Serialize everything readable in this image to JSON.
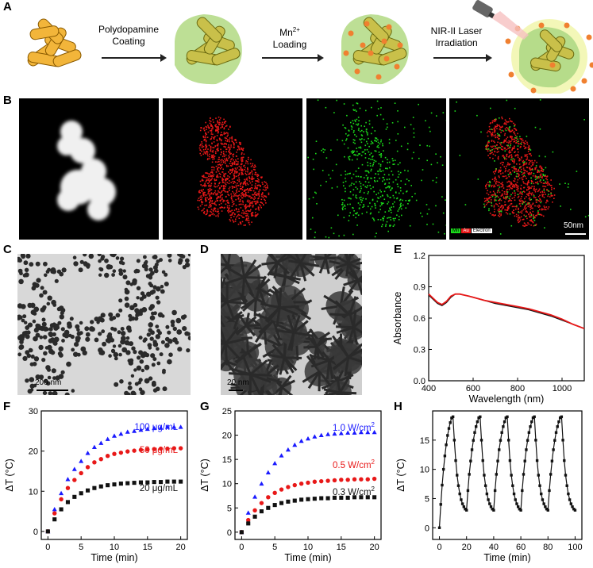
{
  "panels": {
    "A": "A",
    "B": "B",
    "C": "C",
    "D": "D",
    "E": "E",
    "F": "F",
    "G": "G",
    "H": "H"
  },
  "schematic": {
    "step1": "Polydopamine\nCoating",
    "step2_main": "Mn",
    "step2_sup": "2+",
    "step2_sub": "Loading",
    "step3": "NIR-II Laser\nIrradiation"
  },
  "eds": {
    "legend_mn": "Mn",
    "legend_au": "Au",
    "legend_electron": "Electron",
    "scale": "50nm"
  },
  "tem": {
    "c_scale": "200 nm",
    "d_scale": "20 nm"
  },
  "colors": {
    "blue": "#1a1aff",
    "red": "#e81818",
    "black": "#111111",
    "gold": "#f0b030",
    "shell": "#a8d88a",
    "mn_dot": "#f08030"
  },
  "chart_data": [
    {
      "panel": "E",
      "type": "line",
      "xlabel": "Wavelength (nm)",
      "ylabel": "Absorbance",
      "xlim": [
        400,
        1100
      ],
      "ylim": [
        0.0,
        1.2
      ],
      "xticks": [
        "400",
        "600",
        "800",
        "1000"
      ],
      "yticks": [
        "0.0",
        "0.3",
        "0.6",
        "0.9",
        "1.2"
      ],
      "series": [
        {
          "color": "black",
          "x": [
            400,
            420,
            440,
            460,
            480,
            500,
            520,
            540,
            560,
            580,
            600,
            650,
            700,
            750,
            800,
            850,
            900,
            950,
            1000,
            1050,
            1100
          ],
          "y": [
            0.82,
            0.78,
            0.74,
            0.72,
            0.75,
            0.8,
            0.83,
            0.83,
            0.82,
            0.81,
            0.8,
            0.77,
            0.74,
            0.72,
            0.7,
            0.68,
            0.65,
            0.62,
            0.58,
            0.54,
            0.5
          ]
        },
        {
          "color": "red",
          "x": [
            400,
            420,
            440,
            460,
            480,
            500,
            520,
            540,
            560,
            580,
            600,
            650,
            700,
            750,
            800,
            850,
            900,
            950,
            1000,
            1050,
            1100
          ],
          "y": [
            0.83,
            0.79,
            0.75,
            0.73,
            0.76,
            0.81,
            0.83,
            0.83,
            0.82,
            0.81,
            0.8,
            0.77,
            0.75,
            0.73,
            0.71,
            0.69,
            0.66,
            0.63,
            0.59,
            0.54,
            0.5
          ]
        }
      ]
    },
    {
      "panel": "F",
      "type": "scatter",
      "xlabel": "Time (min)",
      "ylabel": "ΔT (°C)",
      "xlim": [
        -1,
        21
      ],
      "ylim": [
        -2,
        30
      ],
      "xticks": [
        "0",
        "5",
        "10",
        "15",
        "20"
      ],
      "yticks": [
        "0",
        "10",
        "20",
        "30"
      ],
      "x": [
        0,
        1,
        2,
        3,
        4,
        5,
        6,
        7,
        8,
        9,
        10,
        11,
        12,
        13,
        14,
        15,
        16,
        17,
        18,
        19,
        20
      ],
      "series": [
        {
          "name": "100 μg/mL",
          "color": "blue",
          "marker": "triangle",
          "values": [
            0,
            5.5,
            9.5,
            13,
            15.5,
            17.5,
            19.5,
            21,
            22,
            23,
            23.8,
            24.3,
            24.8,
            25,
            25.3,
            25.5,
            25.7,
            25.8,
            26,
            26,
            26
          ]
        },
        {
          "name": "50 μg/mL",
          "color": "red",
          "marker": "circle",
          "values": [
            0,
            4.5,
            8,
            10.8,
            12.8,
            14.5,
            16,
            17.2,
            18,
            18.8,
            19.3,
            19.6,
            19.9,
            20.1,
            20.3,
            20.4,
            20.5,
            20.6,
            20.6,
            20.7,
            20.7
          ]
        },
        {
          "name": "20 μg/mL",
          "color": "black",
          "marker": "square",
          "values": [
            0,
            3,
            5.5,
            7.3,
            8.6,
            9.5,
            10.2,
            10.8,
            11.2,
            11.5,
            11.7,
            11.9,
            12,
            12.1,
            12.2,
            12.2,
            12.3,
            12.3,
            12.4,
            12.4,
            12.4
          ]
        }
      ]
    },
    {
      "panel": "G",
      "type": "scatter",
      "xlabel": "Time (min)",
      "ylabel": "ΔT (°C)",
      "xlim": [
        -1,
        21
      ],
      "ylim": [
        -1.5,
        25
      ],
      "xticks": [
        "0",
        "5",
        "10",
        "15",
        "20"
      ],
      "yticks": [
        "0",
        "5",
        "10",
        "15",
        "20",
        "25"
      ],
      "x": [
        0,
        1,
        2,
        3,
        4,
        5,
        6,
        7,
        8,
        9,
        10,
        11,
        12,
        13,
        14,
        15,
        16,
        17,
        18,
        19,
        20
      ],
      "series": [
        {
          "name_main": "1.0 W/cm",
          "name_sup": "2",
          "color": "blue",
          "marker": "triangle",
          "values": [
            0,
            4,
            7.3,
            10,
            12.3,
            14.2,
            15.8,
            17,
            18,
            18.8,
            19.3,
            19.7,
            20,
            20.2,
            20.3,
            20.4,
            20.5,
            20.5,
            20.6,
            20.6,
            20.6
          ]
        },
        {
          "name_main": "0.5 W/cm",
          "name_sup": "2",
          "color": "red",
          "marker": "circle",
          "values": [
            0,
            2.5,
            4.5,
            6,
            7.2,
            8.1,
            8.8,
            9.3,
            9.7,
            10,
            10.2,
            10.4,
            10.5,
            10.6,
            10.7,
            10.8,
            10.8,
            10.9,
            10.9,
            10.9,
            11
          ]
        },
        {
          "name_main": "0.3 W/cm",
          "name_sup": "2",
          "color": "black",
          "marker": "square",
          "values": [
            0,
            1.8,
            3.2,
            4.3,
            5,
            5.6,
            6,
            6.3,
            6.5,
            6.7,
            6.8,
            6.9,
            7,
            7,
            7.1,
            7.1,
            7.1,
            7.2,
            7.2,
            7.2,
            7.2
          ]
        }
      ]
    },
    {
      "panel": "H",
      "type": "line",
      "xlabel": "Time (min)",
      "ylabel": "ΔT (°C)",
      "xlim": [
        -5,
        105
      ],
      "ylim": [
        -2,
        20
      ],
      "xticks": [
        "0",
        "20",
        "40",
        "60",
        "80",
        "100"
      ],
      "yticks": [
        "0",
        "5",
        "10",
        "15"
      ],
      "heat": [
        0,
        4,
        7.3,
        10,
        12.3,
        14.2,
        15.8,
        17,
        18,
        18.8,
        19
      ],
      "cool": [
        19,
        15,
        11.5,
        9,
        7.2,
        5.8,
        4.8,
        4.1,
        3.6,
        3.2,
        3
      ]
    }
  ]
}
